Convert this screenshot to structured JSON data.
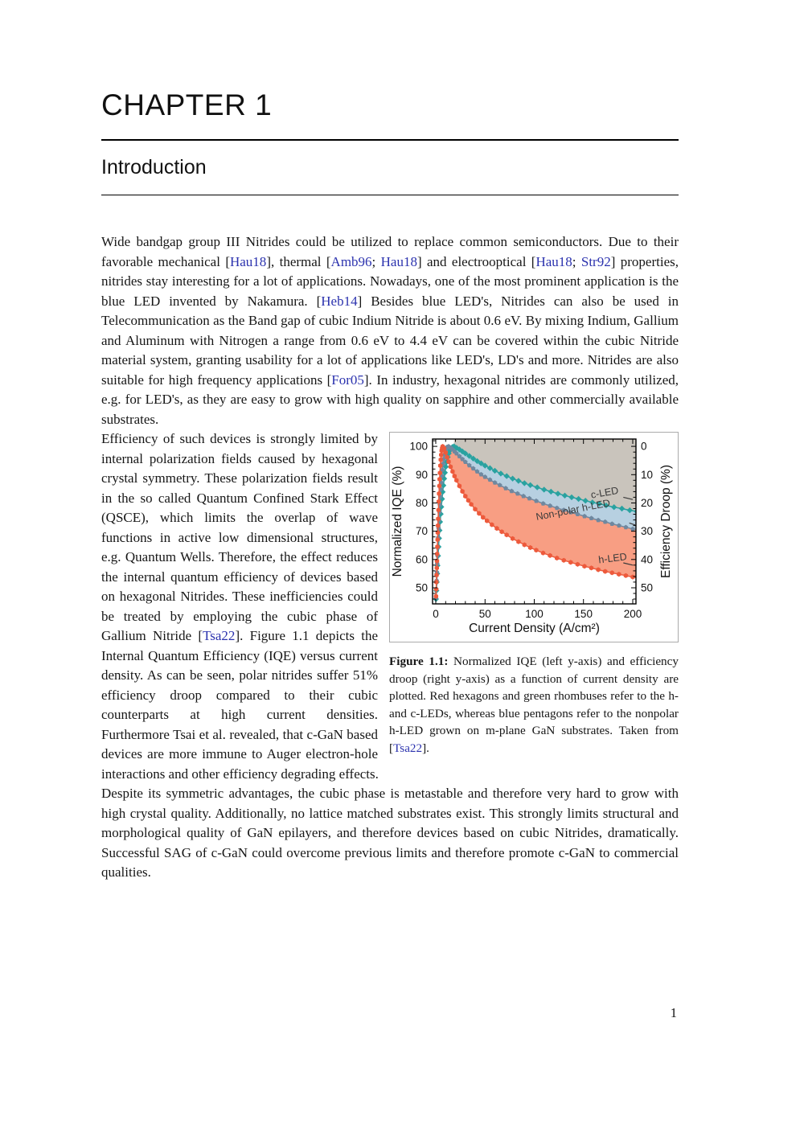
{
  "page": {
    "number": "1"
  },
  "chapter": {
    "kicker": "CHAPTER 1",
    "title": "Introduction"
  },
  "paragraphs": {
    "p1": [
      {
        "t": "text",
        "s": "Wide bandgap group III Nitrides could be utilized to replace common semiconductors. Due to their favorable mechanical ["
      },
      {
        "t": "cite",
        "s": "Hau18"
      },
      {
        "t": "text",
        "s": "], thermal ["
      },
      {
        "t": "cite",
        "s": "Amb96"
      },
      {
        "t": "text",
        "s": "; "
      },
      {
        "t": "cite",
        "s": "Hau18"
      },
      {
        "t": "text",
        "s": "] and electrooptical ["
      },
      {
        "t": "cite",
        "s": "Hau18"
      },
      {
        "t": "text",
        "s": "; "
      },
      {
        "t": "cite",
        "s": "Str92"
      },
      {
        "t": "text",
        "s": "] properties, nitrides stay interesting for a lot of applications. Nowadays, one of the most prominent application is the blue LED invented by Nakamura. ["
      },
      {
        "t": "cite",
        "s": "Heb14"
      },
      {
        "t": "text",
        "s": "] Besides blue LED's, Nitrides can also be used in Telecommunication as the Band gap of cubic Indium Nitride is about 0.6 eV. By mixing Indium, Gallium and Aluminum with Nitrogen a range from 0.6 eV to 4.4 eV can be covered within the cubic Nitride material system, granting usability for a lot of applications like LED's, LD's and more. Nitrides are also suitable for high frequency applications ["
      },
      {
        "t": "cite",
        "s": "For05"
      },
      {
        "t": "text",
        "s": "]. In industry, hexagonal nitrides are commonly utilized, e.g. for LED's, as they are easy to grow with high quality on sapphire and other commercially available substrates."
      }
    ],
    "p2": [
      {
        "t": "text",
        "s": "Efficiency of such devices is strongly limited by internal polarization fields caused by hexagonal crystal symmetry. These polarization fields result in the so called Quantum Confined Stark Effect (QSCE), which limits the overlap of wave functions in active low dimensional structures, e.g. Quantum Wells. Therefore, the effect reduces the internal quantum efficiency of devices based on hexagonal Nitrides. These inefficiencies could be treated by employing the cubic phase of Gallium Nitride ["
      },
      {
        "t": "cite",
        "s": "Tsa22"
      },
      {
        "t": "text",
        "s": "]. Figure 1.1 depicts the Internal Quantum Efficiency (IQE) versus current density. As can be seen, polar nitrides suffer 51% efficiency droop compared to their cubic counterparts at high current densities. Furthermore Tsai et al. revealed, that c-GaN based devices are more immune to Auger electron-hole interactions and other efficiency degrading effects."
      }
    ],
    "p3": [
      {
        "t": "text",
        "s": "Despite its symmetric advantages, the cubic phase is metastable and therefore very hard to grow with high crystal quality. Additionally, no lattice matched substrates exist. This strongly limits structural and morphological quality of GaN epilayers, and therefore devices based on cubic Nitrides, dramatically. Successful SAG of c-GaN could overcome previous limits and therefore promote c-GaN to commercial qualities."
      }
    ]
  },
  "figure": {
    "caption": [
      {
        "t": "bold",
        "s": "Figure 1.1:"
      },
      {
        "t": "text",
        "s": " Normalized IQE (left y-axis) and efficiency droop (right y-axis) as a function of current density are plotted. Red hexagons and green rhombuses refer to the h- and c-LEDs, whereas blue pentagons refer to the nonpolar h-LED grown on m-plane GaN substrates. Taken from ["
      },
      {
        "t": "cite",
        "s": "Tsa22"
      },
      {
        "t": "text",
        "s": "]."
      }
    ]
  },
  "chart_data": {
    "type": "line",
    "xlabel": "Current Density (A/cm²)",
    "ylabel_left": "Normalized IQE (%)",
    "ylabel_right": "Efficiency Droop (%)",
    "xlim": [
      -3.3,
      203.3
    ],
    "ylim": [
      44.3,
      102.6
    ],
    "x_ticks": [
      0,
      50,
      100,
      150,
      200
    ],
    "x_minor_step": 10,
    "y_left_ticks": [
      50,
      60,
      70,
      80,
      90,
      100
    ],
    "y_left_minor_step": 2,
    "y_right_ticks": [
      0,
      10,
      20,
      30,
      40,
      50
    ],
    "y_right_minor_step": 2,
    "grid": false,
    "frame_color": "#000000",
    "series": [
      {
        "name": "c-LED",
        "marker": "diamond",
        "color": "#29a2a0",
        "points": [
          [
            0.2,
            46
          ],
          [
            0.6,
            49
          ],
          [
            1.0,
            52
          ],
          [
            1.4,
            55
          ],
          [
            1.8,
            57.9
          ],
          [
            2.3,
            61.3
          ],
          [
            2.8,
            64.5
          ],
          [
            3.3,
            67.5
          ],
          [
            3.8,
            70.3
          ],
          [
            4.4,
            73.3
          ],
          [
            5.0,
            76.1
          ],
          [
            5.6,
            78.6
          ],
          [
            6.3,
            81.4
          ],
          [
            7.0,
            83.9
          ],
          [
            7.7,
            86.2
          ],
          [
            8.5,
            88.6
          ],
          [
            9.3,
            90.7
          ],
          [
            10.2,
            92.8
          ],
          [
            11.1,
            94.5
          ],
          [
            12.1,
            96.2
          ],
          [
            13.2,
            97.5
          ],
          [
            14.4,
            98.6
          ],
          [
            15.7,
            99.4
          ],
          [
            17.0,
            99.8
          ],
          [
            18.5,
            100
          ],
          [
            21,
            99.5
          ],
          [
            24,
            98.9
          ],
          [
            27,
            98.2
          ],
          [
            30,
            97.5
          ],
          [
            34,
            96.6
          ],
          [
            38,
            95.7
          ],
          [
            42,
            94.8
          ],
          [
            46,
            94
          ],
          [
            50,
            93.2
          ],
          [
            55,
            92.3
          ],
          [
            60,
            91.4
          ],
          [
            66,
            90.4
          ],
          [
            72,
            89.5
          ],
          [
            78,
            88.6
          ],
          [
            84,
            87.8
          ],
          [
            90,
            87
          ],
          [
            96,
            86.3
          ],
          [
            103,
            85.5
          ],
          [
            110,
            84.7
          ],
          [
            117,
            84
          ],
          [
            124,
            83.3
          ],
          [
            131,
            82.6
          ],
          [
            138,
            82
          ],
          [
            145,
            81.4
          ],
          [
            152,
            80.8
          ],
          [
            159,
            80.2
          ],
          [
            166,
            79.7
          ],
          [
            173,
            79.1
          ],
          [
            181,
            78.5
          ],
          [
            189,
            78
          ],
          [
            197,
            77.4
          ],
          [
            204,
            77
          ]
        ]
      },
      {
        "name": "Non-polar h-LED",
        "marker": "pentagon",
        "color": "#70889f",
        "points": [
          [
            0.2,
            46.5
          ],
          [
            0.5,
            49.5
          ],
          [
            0.8,
            52.5
          ],
          [
            1.1,
            55.5
          ],
          [
            1.4,
            58.5
          ],
          [
            1.7,
            61.4
          ],
          [
            2.0,
            64.2
          ],
          [
            2.4,
            67.7
          ],
          [
            2.8,
            71
          ],
          [
            3.2,
            74
          ],
          [
            3.6,
            76.8
          ],
          [
            4.0,
            79.4
          ],
          [
            4.5,
            82.3
          ],
          [
            5.0,
            84.9
          ],
          [
            5.5,
            87.2
          ],
          [
            6.1,
            89.6
          ],
          [
            6.7,
            91.7
          ],
          [
            7.4,
            93.8
          ],
          [
            8.1,
            95.5
          ],
          [
            8.9,
            97.1
          ],
          [
            9.7,
            98.3
          ],
          [
            10.6,
            99.2
          ],
          [
            11.6,
            99.8
          ],
          [
            13.0,
            100
          ],
          [
            15,
            99.5
          ],
          [
            17,
            98.9
          ],
          [
            19,
            98.2
          ],
          [
            21,
            97.5
          ],
          [
            24,
            96.5
          ],
          [
            27,
            95.5
          ],
          [
            30,
            94.5
          ],
          [
            34,
            93.3
          ],
          [
            38,
            92.2
          ],
          [
            42,
            91.1
          ],
          [
            46,
            90.1
          ],
          [
            50,
            89.2
          ],
          [
            55,
            88.2
          ],
          [
            60,
            87.2
          ],
          [
            65,
            86.3
          ],
          [
            71,
            85.2
          ],
          [
            77,
            84.2
          ],
          [
            83,
            83.3
          ],
          [
            89,
            82.4
          ],
          [
            95,
            81.6
          ],
          [
            102,
            80.7
          ],
          [
            109,
            79.8
          ],
          [
            116,
            79
          ],
          [
            123,
            78.2
          ],
          [
            130,
            77.5
          ],
          [
            137,
            76.7
          ],
          [
            144,
            76
          ],
          [
            151,
            75.3
          ],
          [
            158,
            74.6
          ],
          [
            165,
            73.9
          ],
          [
            172,
            73.3
          ],
          [
            179,
            72.6
          ],
          [
            186,
            72
          ],
          [
            193,
            71.4
          ],
          [
            200,
            70.8
          ]
        ]
      },
      {
        "name": "h-LED",
        "marker": "hexagon",
        "color": "#ed5a3c",
        "points": [
          [
            0.2,
            47
          ],
          [
            0.4,
            49.5
          ],
          [
            0.6,
            52
          ],
          [
            0.8,
            54.5
          ],
          [
            1.0,
            57
          ],
          [
            1.2,
            59.5
          ],
          [
            1.4,
            62
          ],
          [
            1.6,
            64.5
          ],
          [
            1.8,
            67
          ],
          [
            2.0,
            69.5
          ],
          [
            2.2,
            72
          ],
          [
            2.4,
            74.4
          ],
          [
            2.7,
            77.5
          ],
          [
            3.0,
            80.5
          ],
          [
            3.3,
            83.3
          ],
          [
            3.6,
            86
          ],
          [
            3.9,
            88.4
          ],
          [
            4.2,
            90.6
          ],
          [
            4.6,
            93.2
          ],
          [
            5.0,
            95.3
          ],
          [
            5.4,
            97
          ],
          [
            5.9,
            98.5
          ],
          [
            6.4,
            99.4
          ],
          [
            7.0,
            100
          ],
          [
            8.5,
            99.3
          ],
          [
            10,
            97.8
          ],
          [
            11.5,
            96.2
          ],
          [
            13,
            94.6
          ],
          [
            15,
            92.8
          ],
          [
            17,
            91.1
          ],
          [
            19,
            89.5
          ],
          [
            21,
            88
          ],
          [
            24,
            86
          ],
          [
            27,
            84.1
          ],
          [
            30,
            82.4
          ],
          [
            33,
            80.9
          ],
          [
            36,
            79.5
          ],
          [
            40,
            77.8
          ],
          [
            44,
            76.3
          ],
          [
            48,
            74.9
          ],
          [
            52,
            73.7
          ],
          [
            57,
            72.3
          ],
          [
            62,
            71
          ],
          [
            67,
            69.8
          ],
          [
            72,
            68.7
          ],
          [
            78,
            67.4
          ],
          [
            84,
            66.3
          ],
          [
            90,
            65.2
          ],
          [
            96,
            64.2
          ],
          [
            102,
            63.3
          ],
          [
            109,
            62.3
          ],
          [
            116,
            61.4
          ],
          [
            123,
            60.5
          ],
          [
            130,
            59.7
          ],
          [
            137,
            59
          ],
          [
            144,
            58.3
          ],
          [
            151,
            57.6
          ],
          [
            158,
            57
          ],
          [
            165,
            56.4
          ],
          [
            172,
            55.8
          ],
          [
            179,
            55.3
          ],
          [
            186,
            54.8
          ],
          [
            193,
            54.3
          ],
          [
            200,
            53.8
          ]
        ]
      }
    ],
    "bands": [
      {
        "upper": "_top",
        "lower": "c-LED",
        "color": "#c9c4bc"
      },
      {
        "upper": "c-LED",
        "lower": "Non-polar h-LED",
        "color": "#b7d0e1"
      },
      {
        "upper": "Non-polar h-LED",
        "lower": "h-LED",
        "color": "#f89e83"
      }
    ],
    "annotations": [
      {
        "text": "c-LED",
        "x": 172,
        "y": 82.5,
        "rot": -10
      },
      {
        "text": "Non-polar h-LED",
        "x": 140,
        "y": 76.4,
        "rot": -11
      },
      {
        "text": "h-LED",
        "x": 180,
        "y": 59.3,
        "rot": -7
      }
    ],
    "leaders": [
      [
        190.5,
        82.0,
        200,
        81.2
      ],
      [
        196.5,
        72.9,
        202.6,
        72.2
      ],
      [
        190.5,
        58.8,
        200,
        58.0
      ]
    ],
    "label_color": "#3a3a3a"
  }
}
